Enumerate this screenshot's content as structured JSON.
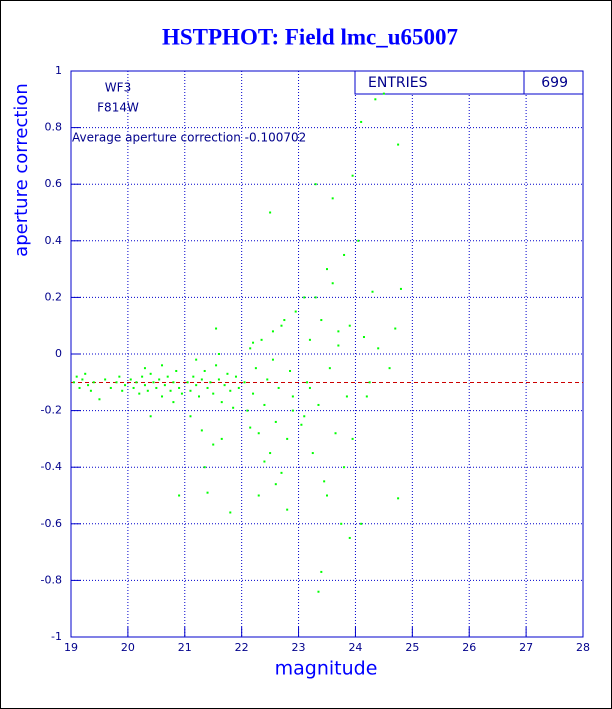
{
  "chart_data": {
    "type": "scatter",
    "title": "HSTPHOT: Field lmc_u65007",
    "x_label": "magnitude",
    "y_label": "aperture correction",
    "annotations": [
      "WF3",
      "F814W",
      "Average aperture correction -0.100702"
    ],
    "stats": {
      "label": "ENTRIES",
      "value": 699
    },
    "reference_line": -0.100702,
    "reference_color": "#cc0000",
    "color": "#00ff00",
    "grid": true,
    "xlim": [
      19,
      28
    ],
    "ylim": [
      -1,
      1
    ],
    "xticks": [
      19,
      20,
      21,
      22,
      23,
      24,
      25,
      26,
      27,
      28
    ],
    "yticks": [
      -1,
      -0.8,
      -0.6,
      -0.4,
      -0.2,
      0,
      0.2,
      0.4,
      0.6,
      0.8,
      1
    ],
    "x": [
      19.05,
      19.1,
      19.15,
      19.2,
      19.25,
      19.3,
      19.35,
      19.4,
      19.5,
      19.6,
      19.7,
      19.8,
      19.85,
      19.9,
      19.95,
      20.05,
      20.1,
      20.15,
      20.2,
      20.25,
      20.3,
      20.35,
      20.4,
      20.45,
      20.5,
      20.55,
      20.6,
      20.65,
      20.7,
      20.75,
      20.8,
      20.85,
      20.9,
      20.95,
      20.4,
      20.6,
      20.8,
      20.9,
      20.3,
      21.05,
      21.1,
      21.15,
      21.2,
      21.25,
      21.3,
      21.35,
      21.4,
      21.45,
      21.5,
      21.55,
      21.6,
      21.65,
      21.7,
      21.75,
      21.8,
      21.85,
      21.9,
      21.95,
      21.2,
      21.3,
      21.5,
      21.6,
      21.1,
      21.35,
      21.4,
      21.65,
      21.8,
      21.55,
      22.05,
      22.1,
      22.15,
      22.2,
      22.25,
      22.3,
      22.35,
      22.4,
      22.45,
      22.5,
      22.55,
      22.6,
      22.65,
      22.7,
      22.75,
      22.8,
      22.85,
      22.9,
      22.95,
      22.3,
      22.5,
      22.6,
      22.8,
      22.2,
      22.4,
      22.7,
      22.9,
      22.15,
      22.55,
      23.05,
      23.1,
      23.15,
      23.2,
      23.25,
      23.3,
      23.35,
      23.4,
      23.45,
      23.5,
      23.55,
      23.6,
      23.65,
      23.7,
      23.75,
      23.8,
      23.85,
      23.9,
      23.95,
      23.4,
      23.35,
      23.9,
      23.95,
      23.1,
      23.3,
      23.5,
      23.7,
      23.2,
      23.8,
      23.6,
      24.05,
      24.1,
      24.15,
      24.2,
      24.3,
      24.35,
      24.4,
      24.5,
      24.6,
      24.7,
      24.75,
      24.75,
      24.8,
      24.1,
      24.25
    ],
    "y": [
      -0.1,
      -0.08,
      -0.12,
      -0.09,
      -0.07,
      -0.11,
      -0.13,
      -0.1,
      -0.16,
      -0.09,
      -0.12,
      -0.1,
      -0.08,
      -0.13,
      -0.11,
      -0.09,
      -0.12,
      -0.1,
      -0.14,
      -0.08,
      -0.11,
      -0.13,
      -0.07,
      -0.1,
      -0.12,
      -0.09,
      -0.15,
      -0.11,
      -0.08,
      -0.13,
      -0.1,
      -0.06,
      -0.12,
      -0.14,
      -0.22,
      -0.04,
      -0.17,
      -0.5,
      -0.05,
      -0.1,
      -0.13,
      -0.08,
      -0.11,
      -0.15,
      -0.09,
      -0.06,
      -0.12,
      -0.1,
      -0.14,
      -0.04,
      -0.09,
      -0.17,
      -0.11,
      -0.07,
      -0.13,
      -0.19,
      -0.08,
      -0.12,
      -0.02,
      -0.27,
      -0.32,
      0,
      -0.22,
      -0.4,
      -0.49,
      -0.3,
      -0.56,
      0.09,
      -0.1,
      -0.2,
      0.02,
      -0.14,
      -0.05,
      -0.28,
      0.05,
      -0.18,
      -0.09,
      -0.35,
      0.08,
      -0.24,
      -0.12,
      -0.42,
      0.12,
      -0.3,
      -0.06,
      -0.2,
      0.15,
      -0.5,
      0.5,
      -0.46,
      -0.55,
      0.04,
      -0.38,
      0.1,
      -0.15,
      -0.26,
      -0.02,
      -0.25,
      0.2,
      -0.1,
      0.05,
      -0.35,
      0.6,
      -0.18,
      0.12,
      -0.45,
      0.3,
      -0.05,
      0.55,
      -0.28,
      0.08,
      -0.6,
      0.35,
      -0.15,
      0.1,
      -0.3,
      -0.77,
      -0.84,
      -0.65,
      0.63,
      -0.22,
      0.2,
      -0.5,
      0.03,
      -0.12,
      -0.4,
      0.25,
      0.4,
      -0.6,
      0.06,
      -0.15,
      0.22,
      0.9,
      0.02,
      0.92,
      -0.05,
      0.09,
      0.74,
      -0.51,
      0.23,
      0.82,
      -0.1
    ]
  }
}
